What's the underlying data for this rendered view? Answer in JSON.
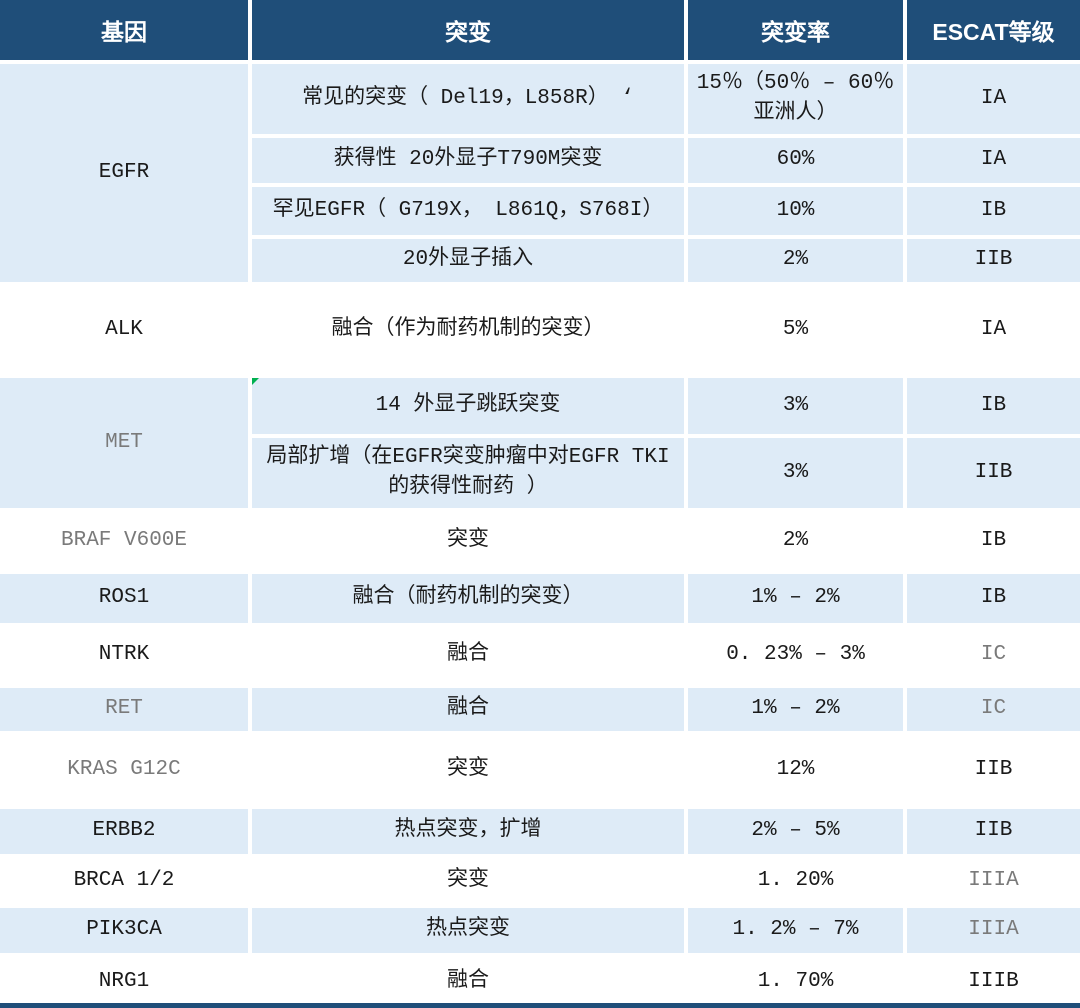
{
  "colors": {
    "header_bg": "#1F4E79",
    "row_alt_bg": "#DEEBF7",
    "text": "#1A1A1A",
    "muted_text": "#7A7A7A",
    "marker_green": "#00B050"
  },
  "header": {
    "columns": [
      "基因",
      "突变",
      "突变率",
      "ESCAT等级"
    ]
  },
  "groups": [
    {
      "gene": "EGFR",
      "gene_muted": false,
      "bg": "blue",
      "rows": [
        {
          "mutation": "常见的突变（ Del19，L858R） ‘",
          "rate": "15％（50％ – 60％ 亚洲人）",
          "grade": "IA",
          "grade_muted": false,
          "marker": false
        },
        {
          "mutation": "获得性 20外显子T790M突变",
          "rate": "60%",
          "grade": "IA",
          "grade_muted": false,
          "marker": false
        },
        {
          "mutation": "罕见EGFR（ G719X， L861Q，S768I）",
          "rate": "10%",
          "grade": "IB",
          "grade_muted": false,
          "marker": false
        },
        {
          "mutation": "20外显子插入",
          "rate": "2%",
          "grade": "IIB",
          "grade_muted": false,
          "marker": false
        }
      ]
    },
    {
      "gene": "ALK",
      "gene_muted": false,
      "bg": "white",
      "rows": [
        {
          "mutation": "融合（作为耐药机制的突变）",
          "rate": "5%",
          "grade": "IA",
          "grade_muted": false,
          "marker": false
        }
      ]
    },
    {
      "gene": "MET",
      "gene_muted": true,
      "bg": "blue",
      "rows": [
        {
          "mutation": "14 外显子跳跃突变",
          "rate": "3%",
          "grade": "IB",
          "grade_muted": false,
          "marker": true
        },
        {
          "mutation": "局部扩增（在EGFR突变肿瘤中对EGFR TKI的获得性耐药 ）",
          "rate": "3%",
          "grade": "IIB",
          "grade_muted": false,
          "marker": false
        }
      ]
    },
    {
      "gene": "BRAF  V600E",
      "gene_muted": true,
      "bg": "white",
      "rows": [
        {
          "mutation": "突变",
          "rate": "2%",
          "grade": "IB",
          "grade_muted": false,
          "marker": false
        }
      ]
    },
    {
      "gene": "ROS1",
      "gene_muted": false,
      "bg": "blue",
      "rows": [
        {
          "mutation": "融合（耐药机制的突变）",
          "rate": "1% – 2%",
          "grade": "IB",
          "grade_muted": false,
          "marker": false
        }
      ]
    },
    {
      "gene": "NTRK",
      "gene_muted": false,
      "bg": "white",
      "rows": [
        {
          "mutation": "融合",
          "rate": "0. 23% – 3%",
          "grade": "IC",
          "grade_muted": true,
          "marker": false
        }
      ]
    },
    {
      "gene": "RET",
      "gene_muted": true,
      "bg": "blue",
      "rows": [
        {
          "mutation": "融合",
          "rate": "1% – 2%",
          "grade": "IC",
          "grade_muted": true,
          "marker": false
        }
      ]
    },
    {
      "gene": "KRAS  G12C",
      "gene_muted": true,
      "bg": "white",
      "rows": [
        {
          "mutation": "突变",
          "rate": "12%",
          "grade": "IIB",
          "grade_muted": false,
          "marker": false
        }
      ]
    },
    {
      "gene": "ERBB2",
      "gene_muted": false,
      "bg": "blue",
      "rows": [
        {
          "mutation": "热点突变，扩增",
          "rate": "2% – 5%",
          "grade": "IIB",
          "grade_muted": false,
          "marker": false
        }
      ]
    },
    {
      "gene": "BRCA 1/2",
      "gene_muted": false,
      "bg": "white",
      "rows": [
        {
          "mutation": "突变",
          "rate": "1. 20%",
          "grade": "IIIA",
          "grade_muted": true,
          "marker": false
        }
      ]
    },
    {
      "gene": "PIK3CA",
      "gene_muted": false,
      "bg": "blue",
      "rows": [
        {
          "mutation": "热点突变",
          "rate": "1. 2% – 7%",
          "grade": "IIIA",
          "grade_muted": true,
          "marker": false
        }
      ]
    },
    {
      "gene": "NRG1",
      "gene_muted": false,
      "bg": "white",
      "rows": [
        {
          "mutation": "融合",
          "rate": "1. 70%",
          "grade": "IIIB",
          "grade_muted": false,
          "marker": false
        }
      ]
    }
  ]
}
